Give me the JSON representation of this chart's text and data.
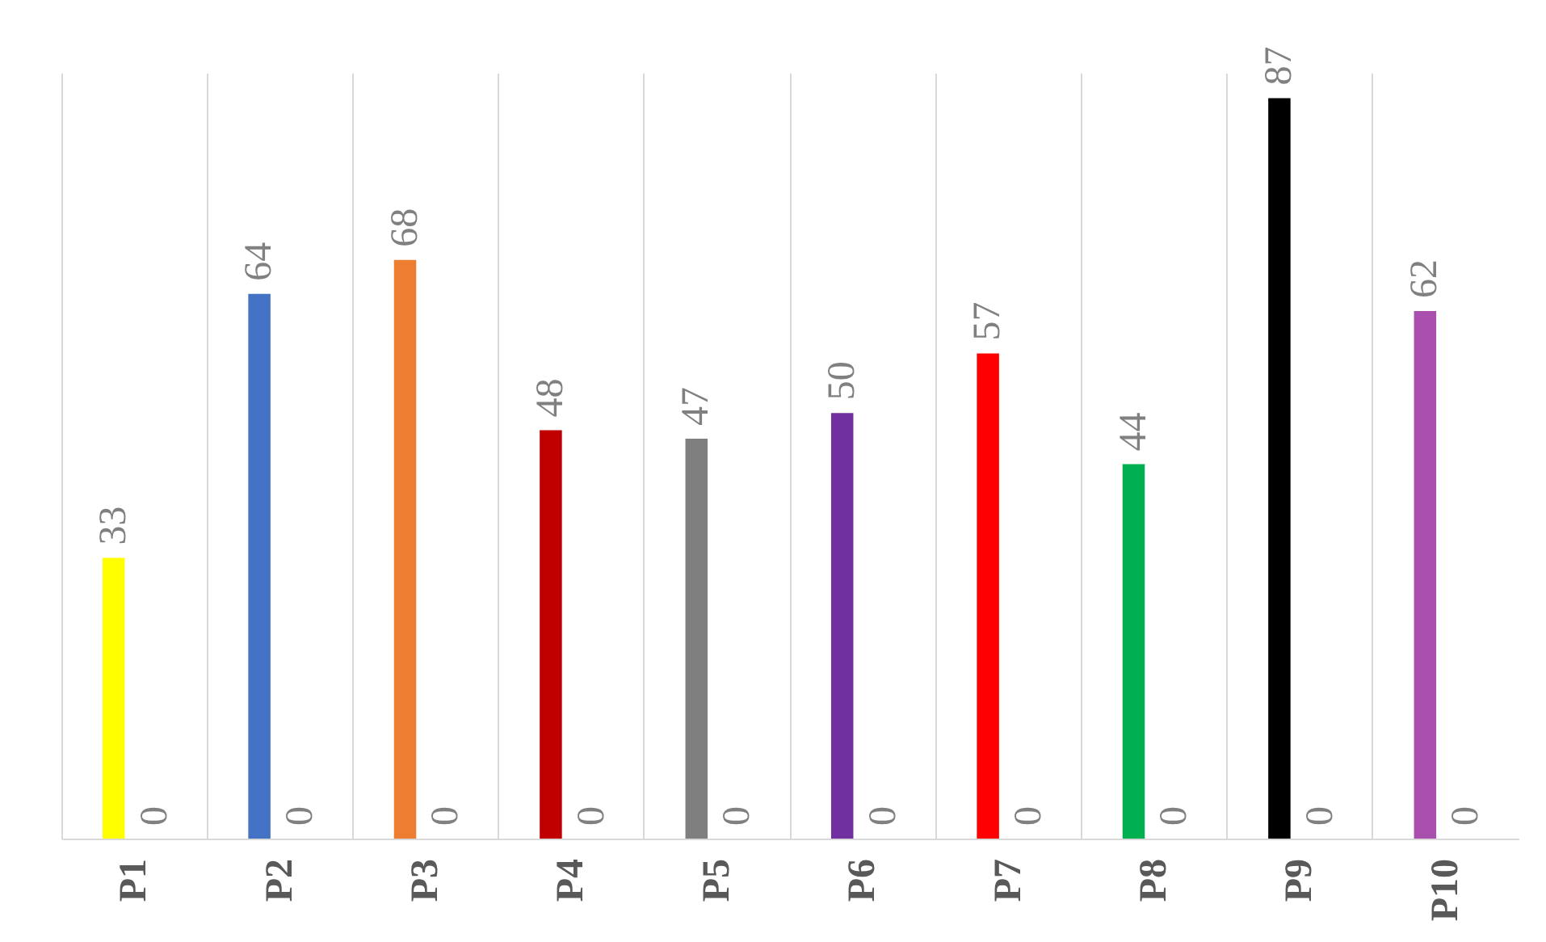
{
  "chart_data": {
    "type": "bar",
    "categories": [
      "P1",
      "P2",
      "P3",
      "P4",
      "P5",
      "P6",
      "P7",
      "P8",
      "P9",
      "P10"
    ],
    "series": [
      {
        "colors": [
          "#ffff00",
          "#4472c4",
          "#ed7d31",
          "#c00000",
          "#7f7f7f",
          "#7030a0",
          "#ff0000",
          "#00b050",
          "#000000",
          "#a94fad"
        ],
        "values": [
          33,
          64,
          68,
          48,
          47,
          50,
          57,
          44,
          87,
          62
        ]
      },
      {
        "values": [
          0,
          0,
          0,
          0,
          0,
          0,
          0,
          0,
          0,
          0
        ]
      }
    ],
    "data_labels": true,
    "grid": "x"
  }
}
